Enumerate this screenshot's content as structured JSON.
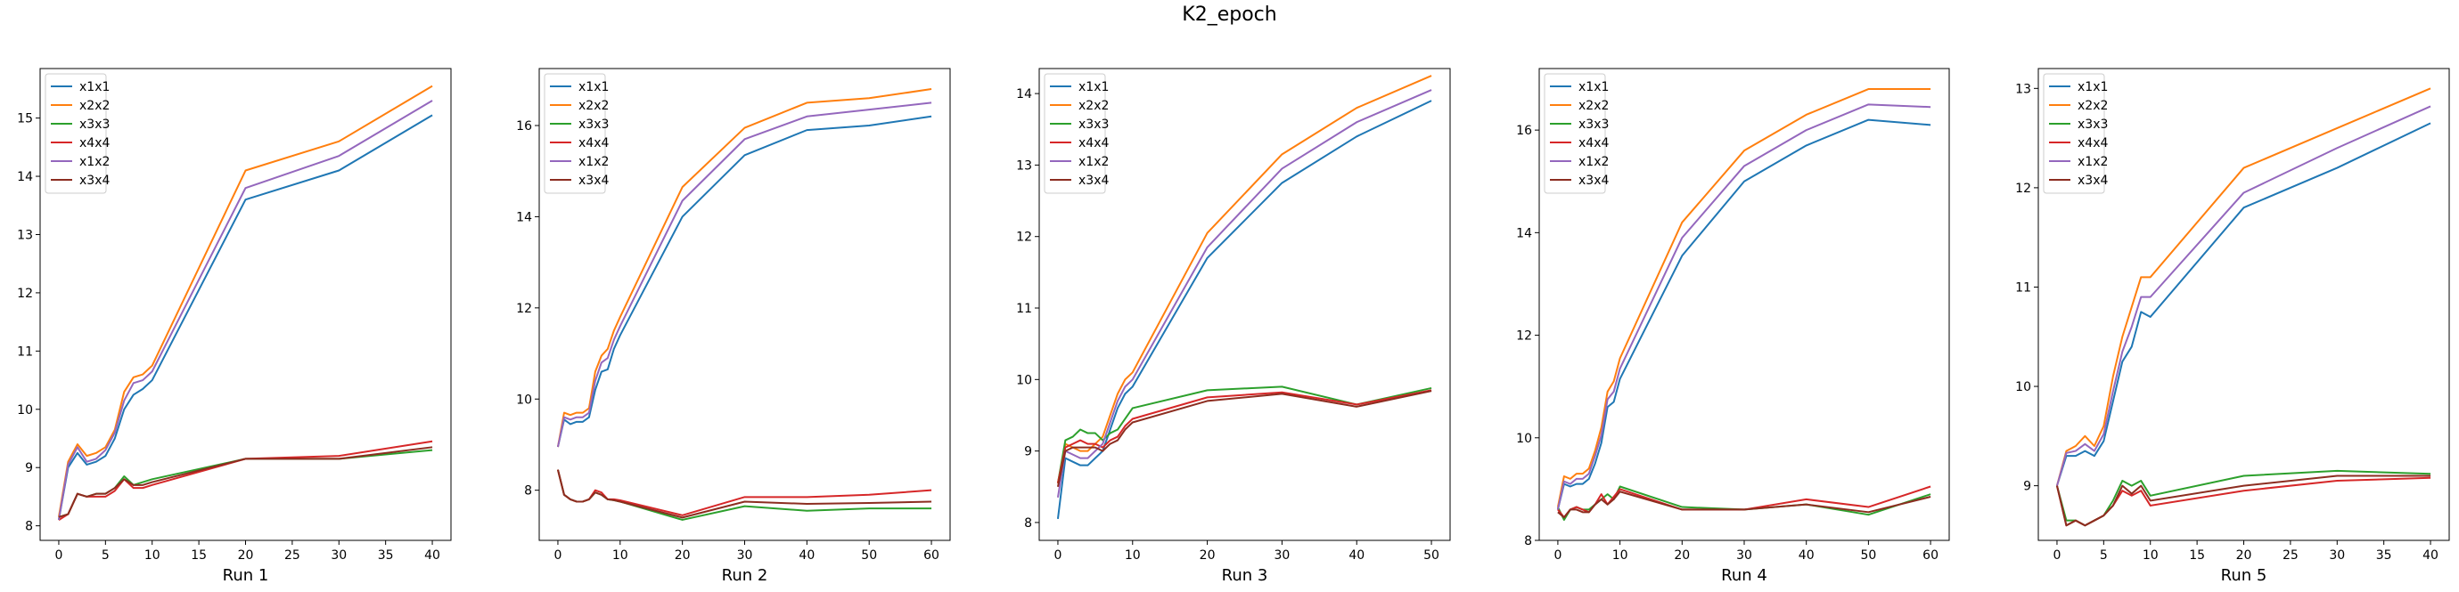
{
  "chart_data": {
    "title": "K2_epoch",
    "colors": {
      "x1x1": "#1f77b4",
      "x2x2": "#ff7f0e",
      "x3x3": "#2ca02c",
      "x4x4": "#d62728",
      "x1x2": "#9467bd",
      "x3x4": "#8c2d20"
    },
    "legend_position": "upper left",
    "subplots": [
      {
        "type": "line",
        "xlabel": "Run 1",
        "xlim": [
          -2,
          42
        ],
        "ylim": [
          7.75,
          15.85
        ],
        "xticks": [
          0,
          5,
          10,
          15,
          20,
          25,
          30,
          35,
          40
        ],
        "yticks": [
          8,
          9,
          10,
          11,
          12,
          13,
          14,
          15
        ],
        "x": [
          0,
          1,
          2,
          3,
          4,
          5,
          6,
          7,
          8,
          9,
          10,
          20,
          30,
          40
        ],
        "series": [
          {
            "name": "x1x1",
            "values": [
              8.1,
              9.0,
              9.25,
              9.05,
              9.1,
              9.2,
              9.5,
              10.0,
              10.25,
              10.35,
              10.5,
              13.6,
              14.1,
              15.05
            ]
          },
          {
            "name": "x2x2",
            "values": [
              8.15,
              9.1,
              9.4,
              9.2,
              9.25,
              9.35,
              9.65,
              10.3,
              10.55,
              10.6,
              10.75,
              14.1,
              14.6,
              15.55
            ]
          },
          {
            "name": "x3x3",
            "values": [
              8.15,
              8.2,
              8.55,
              8.5,
              8.55,
              8.55,
              8.65,
              8.85,
              8.7,
              8.75,
              8.8,
              9.15,
              9.15,
              9.3
            ]
          },
          {
            "name": "x4x4",
            "values": [
              8.1,
              8.2,
              8.55,
              8.5,
              8.5,
              8.5,
              8.6,
              8.8,
              8.65,
              8.65,
              8.7,
              9.15,
              9.2,
              9.45
            ]
          },
          {
            "name": "x1x2",
            "values": [
              8.1,
              9.05,
              9.35,
              9.1,
              9.15,
              9.3,
              9.6,
              10.15,
              10.45,
              10.5,
              10.65,
              13.8,
              14.35,
              15.3
            ]
          },
          {
            "name": "x3x4",
            "values": [
              8.15,
              8.2,
              8.55,
              8.5,
              8.55,
              8.55,
              8.65,
              8.8,
              8.7,
              8.7,
              8.75,
              9.15,
              9.15,
              9.35
            ]
          }
        ]
      },
      {
        "type": "line",
        "xlabel": "Run 2",
        "xlim": [
          -3,
          63
        ],
        "ylim": [
          6.9,
          17.25
        ],
        "xticks": [
          0,
          10,
          20,
          30,
          40,
          50,
          60
        ],
        "yticks": [
          8,
          10,
          12,
          14,
          16
        ],
        "x": [
          0,
          1,
          2,
          3,
          4,
          5,
          6,
          7,
          8,
          9,
          10,
          20,
          30,
          40,
          50,
          60
        ],
        "series": [
          {
            "name": "x1x1",
            "values": [
              8.95,
              9.55,
              9.45,
              9.5,
              9.5,
              9.6,
              10.2,
              10.6,
              10.65,
              11.1,
              11.4,
              14.0,
              15.35,
              15.9,
              16.0,
              16.2
            ]
          },
          {
            "name": "x2x2",
            "values": [
              8.95,
              9.7,
              9.65,
              9.7,
              9.7,
              9.8,
              10.6,
              10.95,
              11.1,
              11.5,
              11.8,
              14.65,
              15.95,
              16.5,
              16.6,
              16.8
            ]
          },
          {
            "name": "x3x3",
            "values": [
              8.45,
              7.9,
              7.8,
              7.75,
              7.75,
              7.8,
              7.95,
              7.9,
              7.8,
              7.78,
              7.75,
              7.35,
              7.65,
              7.55,
              7.6,
              7.6
            ]
          },
          {
            "name": "x4x4",
            "values": [
              8.45,
              7.9,
              7.8,
              7.75,
              7.75,
              7.8,
              8.0,
              7.95,
              7.8,
              7.8,
              7.78,
              7.45,
              7.85,
              7.85,
              7.9,
              8.0
            ]
          },
          {
            "name": "x1x2",
            "values": [
              8.95,
              9.6,
              9.55,
              9.6,
              9.6,
              9.7,
              10.4,
              10.8,
              10.9,
              11.3,
              11.6,
              14.35,
              15.7,
              16.2,
              16.35,
              16.5
            ]
          },
          {
            "name": "x3x4",
            "values": [
              8.45,
              7.9,
              7.8,
              7.75,
              7.75,
              7.8,
              7.95,
              7.9,
              7.8,
              7.78,
              7.75,
              7.4,
              7.75,
              7.7,
              7.72,
              7.75
            ]
          }
        ]
      },
      {
        "type": "line",
        "xlabel": "Run 3",
        "xlim": [
          -2.5,
          52.5
        ],
        "ylim": [
          7.75,
          14.35
        ],
        "xticks": [
          0,
          10,
          20,
          30,
          40,
          50
        ],
        "yticks": [
          8,
          9,
          10,
          11,
          12,
          13,
          14
        ],
        "x": [
          0,
          1,
          2,
          3,
          4,
          5,
          6,
          7,
          8,
          9,
          10,
          20,
          30,
          40,
          50
        ],
        "series": [
          {
            "name": "x1x1",
            "values": [
              8.05,
              8.9,
              8.85,
              8.8,
              8.8,
              8.9,
              9.0,
              9.3,
              9.6,
              9.8,
              9.9,
              11.7,
              12.75,
              13.4,
              13.9
            ]
          },
          {
            "name": "x2x2",
            "values": [
              8.55,
              9.1,
              9.05,
              9.0,
              9.0,
              9.1,
              9.2,
              9.5,
              9.8,
              10.0,
              10.1,
              12.05,
              13.15,
              13.8,
              14.25
            ]
          },
          {
            "name": "x3x3",
            "values": [
              8.55,
              9.15,
              9.2,
              9.3,
              9.25,
              9.25,
              9.15,
              9.25,
              9.3,
              9.45,
              9.6,
              9.85,
              9.9,
              9.65,
              9.88
            ]
          },
          {
            "name": "x4x4",
            "values": [
              8.55,
              9.05,
              9.1,
              9.15,
              9.1,
              9.1,
              9.05,
              9.15,
              9.2,
              9.35,
              9.45,
              9.75,
              9.82,
              9.65,
              9.85
            ]
          },
          {
            "name": "x1x2",
            "values": [
              8.35,
              9.0,
              8.95,
              8.9,
              8.9,
              9.0,
              9.1,
              9.4,
              9.7,
              9.9,
              10.0,
              11.85,
              12.95,
              13.6,
              14.05
            ]
          },
          {
            "name": "x3x4",
            "values": [
              8.5,
              9.0,
              9.05,
              9.05,
              9.05,
              9.05,
              9.0,
              9.1,
              9.15,
              9.3,
              9.4,
              9.7,
              9.8,
              9.62,
              9.84
            ]
          }
        ]
      },
      {
        "type": "line",
        "xlabel": "Run 4",
        "xlim": [
          -3,
          63
        ],
        "ylim": [
          8.0,
          17.2
        ],
        "xticks": [
          0,
          10,
          20,
          30,
          40,
          50,
          60
        ],
        "yticks": [
          8,
          10,
          12,
          14,
          16
        ],
        "x": [
          0,
          1,
          2,
          3,
          4,
          5,
          6,
          7,
          8,
          9,
          10,
          20,
          30,
          40,
          50,
          60
        ],
        "series": [
          {
            "name": "x1x1",
            "values": [
              8.6,
              9.1,
              9.05,
              9.1,
              9.1,
              9.2,
              9.5,
              9.9,
              10.6,
              10.7,
              11.15,
              13.55,
              15.0,
              15.7,
              16.2,
              16.1
            ]
          },
          {
            "name": "x2x2",
            "values": [
              8.65,
              9.25,
              9.2,
              9.3,
              9.3,
              9.4,
              9.75,
              10.2,
              10.9,
              11.1,
              11.55,
              14.2,
              15.6,
              16.3,
              16.8,
              16.8
            ]
          },
          {
            "name": "x3x3",
            "values": [
              8.65,
              8.4,
              8.6,
              8.65,
              8.6,
              8.6,
              8.7,
              8.8,
              8.9,
              8.8,
              9.05,
              8.65,
              8.6,
              8.7,
              8.5,
              8.9
            ]
          },
          {
            "name": "x4x4",
            "values": [
              8.6,
              8.45,
              8.6,
              8.65,
              8.6,
              8.55,
              8.7,
              8.9,
              8.7,
              8.85,
              9.0,
              8.6,
              8.6,
              8.8,
              8.65,
              9.05
            ]
          },
          {
            "name": "x1x2",
            "values": [
              8.6,
              9.15,
              9.1,
              9.2,
              9.2,
              9.3,
              9.65,
              10.05,
              10.75,
              10.9,
              11.35,
              13.9,
              15.3,
              16.0,
              16.5,
              16.45
            ]
          },
          {
            "name": "x3x4",
            "values": [
              8.55,
              8.45,
              8.6,
              8.6,
              8.55,
              8.55,
              8.7,
              8.8,
              8.7,
              8.8,
              8.95,
              8.6,
              8.6,
              8.7,
              8.55,
              8.85
            ]
          }
        ]
      },
      {
        "type": "line",
        "xlabel": "Run 5",
        "xlim": [
          -2,
          42
        ],
        "ylim": [
          8.45,
          13.2
        ],
        "xticks": [
          0,
          5,
          10,
          15,
          20,
          25,
          30,
          35,
          40
        ],
        "yticks": [
          9,
          10,
          11,
          12,
          13
        ],
        "x": [
          0,
          1,
          2,
          3,
          4,
          5,
          6,
          7,
          8,
          9,
          10,
          20,
          30,
          40
        ],
        "series": [
          {
            "name": "x1x1",
            "values": [
              9.0,
              9.3,
              9.3,
              9.35,
              9.3,
              9.45,
              9.85,
              10.25,
              10.4,
              10.75,
              10.7,
              11.8,
              12.2,
              12.65
            ]
          },
          {
            "name": "x2x2",
            "values": [
              9.0,
              9.35,
              9.4,
              9.5,
              9.4,
              9.6,
              10.1,
              10.5,
              10.8,
              11.1,
              11.1,
              12.2,
              12.6,
              13.0
            ]
          },
          {
            "name": "x3x3",
            "values": [
              9.0,
              8.65,
              8.65,
              8.6,
              8.65,
              8.7,
              8.85,
              9.05,
              9.0,
              9.05,
              8.9,
              9.1,
              9.15,
              9.12
            ]
          },
          {
            "name": "x4x4",
            "values": [
              9.0,
              8.6,
              8.65,
              8.6,
              8.65,
              8.7,
              8.8,
              8.95,
              8.9,
              8.95,
              8.8,
              8.95,
              9.05,
              9.08
            ]
          },
          {
            "name": "x1x2",
            "values": [
              9.0,
              9.33,
              9.35,
              9.42,
              9.35,
              9.52,
              9.95,
              10.35,
              10.6,
              10.9,
              10.9,
              11.95,
              12.4,
              12.82
            ]
          },
          {
            "name": "x3x4",
            "values": [
              9.0,
              8.6,
              8.65,
              8.6,
              8.65,
              8.7,
              8.8,
              9.0,
              8.92,
              9.0,
              8.85,
              9.0,
              9.1,
              9.1
            ]
          }
        ]
      }
    ]
  }
}
